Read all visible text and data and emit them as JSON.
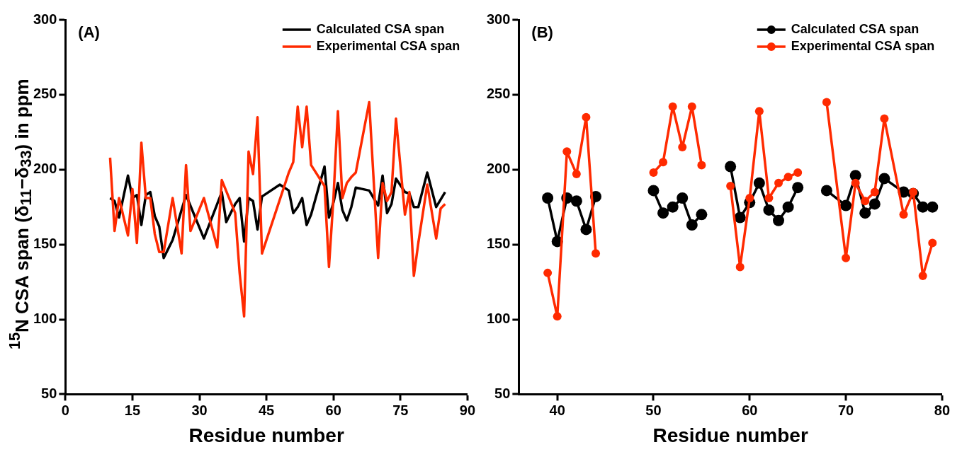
{
  "chart_data": [
    {
      "type": "line",
      "annotations": [
        "(A)"
      ],
      "xlabel": "Residue number",
      "ylabel": "$^{15}$N CSA span (δ$_{11}$−δ$_{33}$) in ppm",
      "legend": "top right",
      "marker": "none",
      "xlim": [
        0,
        90
      ],
      "xticks": [
        0,
        15,
        30,
        45,
        60,
        75,
        90
      ],
      "ylim": [
        50,
        300
      ],
      "yticks": [
        50,
        100,
        150,
        200,
        250,
        300
      ],
      "series": [
        {
          "name": "Calculated CSA span",
          "color": "#000000",
          "x": [
            10,
            11,
            12,
            14,
            15,
            16,
            17,
            18,
            19,
            20,
            21,
            22,
            24,
            27,
            31,
            35,
            36,
            38,
            39,
            40,
            41,
            42,
            43,
            44,
            48,
            50,
            51,
            52,
            53,
            54,
            55,
            58,
            59,
            60,
            61,
            62,
            63,
            64,
            65,
            68,
            70,
            71,
            72,
            73,
            74,
            76,
            77,
            78,
            79,
            81,
            83,
            85
          ],
          "values": [
            181,
            179,
            168,
            196,
            181,
            183,
            163,
            183,
            185,
            169,
            162,
            141,
            153,
            183,
            154,
            185,
            165,
            177,
            181,
            152,
            181,
            179,
            160,
            182,
            190,
            186,
            171,
            175,
            181,
            163,
            170,
            202,
            168,
            178,
            191,
            173,
            166,
            175,
            188,
            186,
            176,
            196,
            171,
            177,
            194,
            185,
            184,
            175,
            175,
            198,
            175,
            185
          ]
        },
        {
          "name": "Experimental CSA span",
          "color": "#ff2a00",
          "x": [
            10,
            11,
            12,
            14,
            15,
            16,
            17,
            18,
            19,
            20,
            21,
            22,
            24,
            26,
            27,
            28,
            31,
            34,
            35,
            38,
            39,
            40,
            41,
            42,
            43,
            44,
            50,
            51,
            52,
            53,
            54,
            55,
            58,
            59,
            60,
            61,
            62,
            63,
            64,
            65,
            68,
            70,
            71,
            72,
            73,
            74,
            76,
            77,
            78,
            79,
            81,
            83,
            84,
            85
          ],
          "values": [
            208,
            159,
            181,
            156,
            187,
            151,
            218,
            181,
            181,
            157,
            145,
            145,
            181,
            144,
            203,
            159,
            181,
            148,
            193,
            171,
            131,
            102,
            212,
            197,
            235,
            144,
            198,
            205,
            242,
            215,
            242,
            203,
            189,
            135,
            181,
            239,
            181,
            191,
            195,
            198,
            245,
            141,
            191,
            179,
            185,
            234,
            170,
            185,
            129,
            151,
            190,
            154,
            174,
            177
          ]
        }
      ]
    },
    {
      "type": "line",
      "annotations": [
        "(B)"
      ],
      "xlabel": "Residue number",
      "legend": "top right",
      "marker": "circle",
      "xlim": [
        36,
        80
      ],
      "xticks": [
        40,
        50,
        60,
        70,
        80
      ],
      "ylim": [
        50,
        300
      ],
      "yticks": [
        50,
        100,
        150,
        200,
        250,
        300
      ],
      "x": [
        39,
        40,
        41,
        42,
        43,
        44,
        45,
        50,
        51,
        52,
        53,
        54,
        55,
        56,
        58,
        59,
        60,
        61,
        62,
        63,
        64,
        65,
        66,
        68,
        70,
        71,
        72,
        73,
        74,
        76,
        77,
        78,
        79
      ],
      "series": [
        {
          "name": "Calculated CSA span",
          "color": "#000000",
          "values": [
            181,
            152,
            181,
            179,
            160,
            182,
            null,
            186,
            171,
            175,
            181,
            163,
            170,
            null,
            202,
            168,
            178,
            191,
            173,
            166,
            175,
            188,
            null,
            186,
            176,
            196,
            171,
            177,
            194,
            185,
            184,
            175,
            175
          ]
        },
        {
          "name": "Experimental CSA span",
          "color": "#ff2a00",
          "values": [
            131,
            102,
            212,
            197,
            235,
            144,
            null,
            198,
            205,
            242,
            215,
            242,
            203,
            null,
            189,
            135,
            181,
            239,
            181,
            191,
            195,
            198,
            null,
            245,
            141,
            191,
            179,
            185,
            234,
            170,
            185,
            129,
            151
          ]
        }
      ]
    }
  ]
}
